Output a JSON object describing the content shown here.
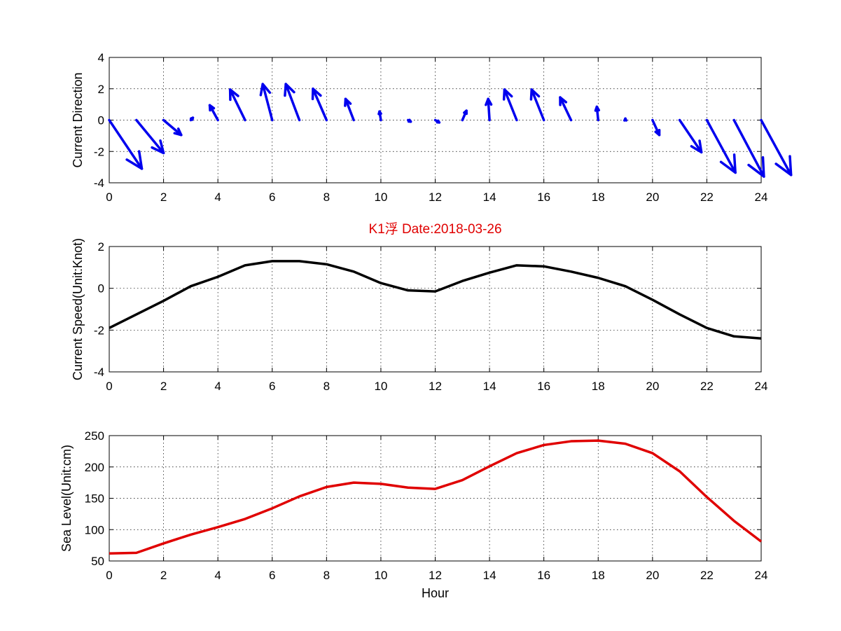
{
  "chart_data": [
    {
      "type": "quiver",
      "ylabel": "Current Direction",
      "xlim": [
        0,
        24
      ],
      "ylim": [
        -4,
        4
      ],
      "xticks": [
        0,
        2,
        4,
        6,
        8,
        10,
        12,
        14,
        16,
        18,
        20,
        22,
        24
      ],
      "yticks": [
        -4,
        -2,
        0,
        2,
        4
      ],
      "grid": true,
      "color": "#0000ee",
      "vectors": [
        {
          "x": 0,
          "u": 1.2,
          "v": -3.1
        },
        {
          "x": 1,
          "u": 1.0,
          "v": -2.1
        },
        {
          "x": 2,
          "u": 0.65,
          "v": -0.95
        },
        {
          "x": 3,
          "u": 0.08,
          "v": 0.15
        },
        {
          "x": 4,
          "u": -0.3,
          "v": 0.95
        },
        {
          "x": 5,
          "u": -0.55,
          "v": 1.95
        },
        {
          "x": 6,
          "u": -0.35,
          "v": 2.3
        },
        {
          "x": 7,
          "u": -0.5,
          "v": 2.3
        },
        {
          "x": 8,
          "u": -0.5,
          "v": 2.0
        },
        {
          "x": 9,
          "u": -0.3,
          "v": 1.35
        },
        {
          "x": 10,
          "u": -0.05,
          "v": 0.55
        },
        {
          "x": 11,
          "u": 0.1,
          "v": -0.1
        },
        {
          "x": 12,
          "u": 0.15,
          "v": -0.15
        },
        {
          "x": 13,
          "u": 0.15,
          "v": 0.6
        },
        {
          "x": 14,
          "u": -0.05,
          "v": 1.35
        },
        {
          "x": 15,
          "u": -0.45,
          "v": 1.95
        },
        {
          "x": 16,
          "u": -0.45,
          "v": 1.95
        },
        {
          "x": 17,
          "u": -0.4,
          "v": 1.45
        },
        {
          "x": 18,
          "u": -0.05,
          "v": 0.85
        },
        {
          "x": 19,
          "u": 0.0,
          "v": 0.1
        },
        {
          "x": 20,
          "u": 0.25,
          "v": -0.95
        },
        {
          "x": 21,
          "u": 0.8,
          "v": -2.05
        },
        {
          "x": 22,
          "u": 1.05,
          "v": -3.35
        },
        {
          "x": 23,
          "u": 1.1,
          "v": -3.6
        },
        {
          "x": 24,
          "u": 1.1,
          "v": -3.5
        }
      ]
    },
    {
      "type": "line",
      "title": "K1浮    Date:2018-03-26",
      "ylabel": "Current Speed(Unit:Knot)",
      "xlim": [
        0,
        24
      ],
      "ylim": [
        -4,
        2
      ],
      "xticks": [
        0,
        2,
        4,
        6,
        8,
        10,
        12,
        14,
        16,
        18,
        20,
        22,
        24
      ],
      "yticks": [
        -4,
        -2,
        0,
        2
      ],
      "grid": true,
      "color": "#000000",
      "x": [
        0,
        1,
        2,
        3,
        4,
        5,
        6,
        7,
        8,
        9,
        10,
        11,
        12,
        13,
        14,
        15,
        16,
        17,
        18,
        19,
        20,
        21,
        22,
        23,
        24
      ],
      "y": [
        -1.9,
        -1.25,
        -0.6,
        0.1,
        0.55,
        1.1,
        1.3,
        1.3,
        1.15,
        0.8,
        0.25,
        -0.1,
        -0.15,
        0.35,
        0.75,
        1.1,
        1.05,
        0.8,
        0.5,
        0.1,
        -0.55,
        -1.25,
        -1.9,
        -2.3,
        -2.4
      ]
    },
    {
      "type": "line",
      "xlabel": "Hour",
      "ylabel": "Sea Level(Unit:cm)",
      "xlim": [
        0,
        24
      ],
      "ylim": [
        50,
        250
      ],
      "xticks": [
        0,
        2,
        4,
        6,
        8,
        10,
        12,
        14,
        16,
        18,
        20,
        22,
        24
      ],
      "yticks": [
        50,
        100,
        150,
        200,
        250
      ],
      "grid": true,
      "color": "#e00000",
      "x": [
        0,
        1,
        2,
        3,
        4,
        5,
        6,
        7,
        8,
        9,
        10,
        11,
        12,
        13,
        14,
        15,
        16,
        17,
        18,
        19,
        20,
        21,
        22,
        23,
        24
      ],
      "y": [
        62,
        63,
        78,
        92,
        104,
        117,
        134,
        153,
        168,
        175,
        173,
        167,
        165,
        179,
        201,
        222,
        235,
        241,
        242,
        237,
        222,
        193,
        152,
        114,
        81
      ]
    }
  ]
}
